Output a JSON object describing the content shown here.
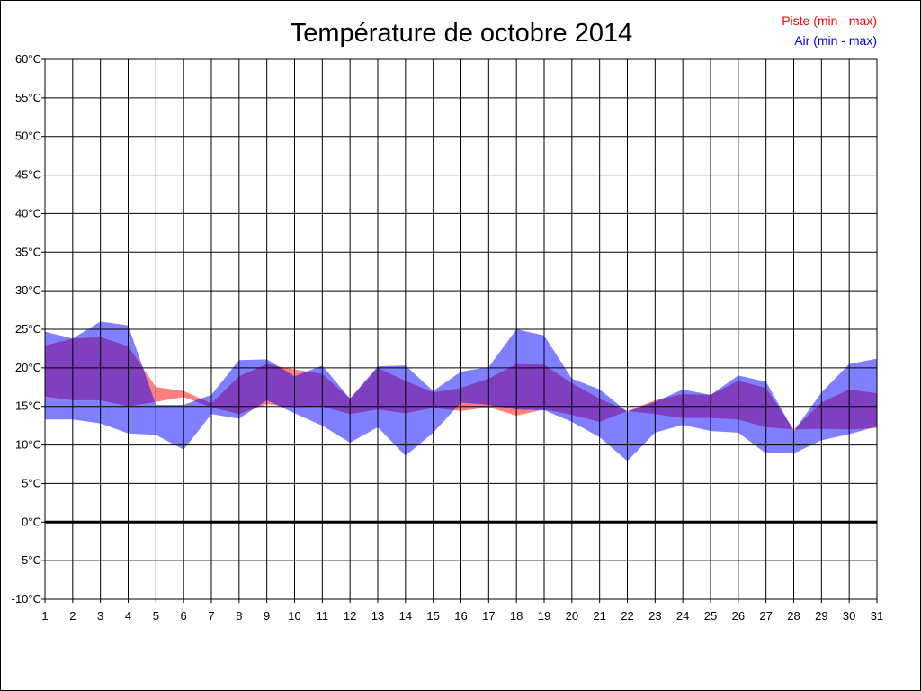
{
  "chart_data": {
    "type": "area",
    "title": "Température de octobre 2014",
    "x": [
      1,
      2,
      3,
      4,
      5,
      6,
      7,
      8,
      9,
      10,
      11,
      12,
      13,
      14,
      15,
      16,
      17,
      18,
      19,
      20,
      21,
      22,
      23,
      24,
      25,
      26,
      27,
      28,
      29,
      30,
      31
    ],
    "x_tick_labels": [
      "1",
      "2",
      "3",
      "4",
      "5",
      "6",
      "7",
      "8",
      "9",
      "10",
      "11",
      "12",
      "13",
      "14",
      "15",
      "16",
      "17",
      "18",
      "19",
      "20",
      "21",
      "22",
      "23",
      "24",
      "25",
      "26",
      "27",
      "28",
      "29",
      "30",
      "31"
    ],
    "y_tick_labels": [
      "60°C",
      "55°C",
      "50°C",
      "45°C",
      "40°C",
      "35°C",
      "30°C",
      "25°C",
      "20°C",
      "15°C",
      "10°C",
      "5°C",
      "0°C",
      "-5°C",
      "-10°C"
    ],
    "ylim": [
      -10,
      60
    ],
    "grid": true,
    "legend_position": "top-right",
    "series": [
      {
        "name": "Piste (min - max)",
        "color": "#ff0000",
        "min": [
          16.3,
          15.8,
          15.8,
          15.0,
          15.6,
          16.2,
          14.9,
          14.0,
          15.3,
          14.9,
          15.0,
          14.0,
          14.6,
          14.1,
          14.8,
          14.4,
          14.9,
          13.8,
          14.6,
          13.9,
          13.0,
          14.4,
          14.0,
          13.5,
          13.5,
          13.3,
          12.3,
          12.0,
          12.1,
          12.0,
          12.2
        ],
        "max": [
          22.9,
          23.8,
          24.0,
          22.8,
          17.5,
          17.0,
          15.4,
          18.9,
          20.5,
          19.8,
          19.2,
          16.0,
          20.0,
          18.3,
          16.8,
          17.4,
          18.6,
          20.5,
          20.4,
          18.0,
          16.0,
          14.4,
          15.8,
          16.6,
          16.5,
          18.3,
          17.4,
          12.0,
          15.5,
          17.2,
          16.7
        ]
      },
      {
        "name": "Air (min - max)",
        "color": "#0000ff",
        "min": [
          13.3,
          13.3,
          12.8,
          11.5,
          11.3,
          9.4,
          14.0,
          13.4,
          15.8,
          14.1,
          12.5,
          10.3,
          12.3,
          8.6,
          11.6,
          15.5,
          15.2,
          14.6,
          14.5,
          13.0,
          11.0,
          7.9,
          11.6,
          12.6,
          11.8,
          11.6,
          8.9,
          8.9,
          10.6,
          11.4,
          12.4
        ],
        "max": [
          24.7,
          23.8,
          26.0,
          25.5,
          15.2,
          15.2,
          16.5,
          21.0,
          21.1,
          18.9,
          20.3,
          16.0,
          20.2,
          20.3,
          17.0,
          19.5,
          20.1,
          25.0,
          24.2,
          18.6,
          17.2,
          14.3,
          15.6,
          17.2,
          16.5,
          19.0,
          18.2,
          11.8,
          16.8,
          20.5,
          21.2
        ]
      }
    ]
  }
}
